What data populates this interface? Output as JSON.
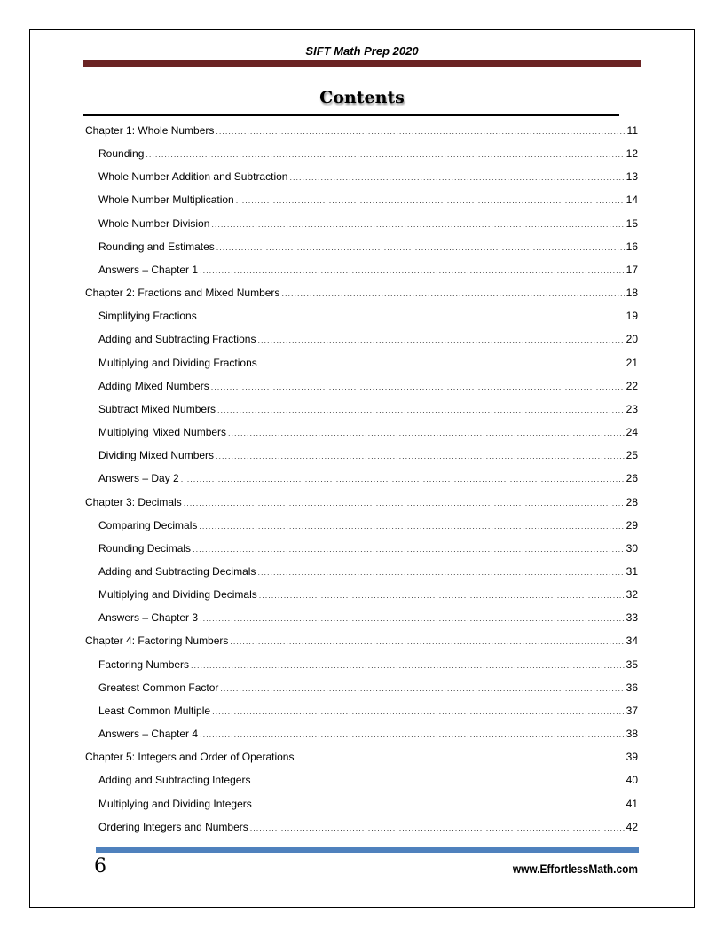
{
  "header": {
    "title": "SIFT Math Prep 2020",
    "bar_color": "#6b2424"
  },
  "heading": "Contents",
  "toc": [
    {
      "level": 1,
      "title": "Chapter 1:  Whole Numbers",
      "page": "11"
    },
    {
      "level": 2,
      "title": "Rounding",
      "page": "12"
    },
    {
      "level": 2,
      "title": "Whole Number Addition and Subtraction",
      "page": "13"
    },
    {
      "level": 2,
      "title": "Whole Number Multiplication",
      "page": "14"
    },
    {
      "level": 2,
      "title": "Whole Number Division",
      "page": "15"
    },
    {
      "level": 2,
      "title": "Rounding and Estimates",
      "page": "16"
    },
    {
      "level": 2,
      "title": "Answers – Chapter 1",
      "page": "17"
    },
    {
      "level": 1,
      "title": "Chapter 2:  Fractions and Mixed Numbers",
      "page": "18"
    },
    {
      "level": 2,
      "title": "Simplifying Fractions",
      "page": "19"
    },
    {
      "level": 2,
      "title": "Adding and Subtracting Fractions",
      "page": "20"
    },
    {
      "level": 2,
      "title": "Multiplying and Dividing Fractions",
      "page": "21"
    },
    {
      "level": 2,
      "title": "Adding Mixed Numbers",
      "page": "22"
    },
    {
      "level": 2,
      "title": "Subtract Mixed Numbers",
      "page": "23"
    },
    {
      "level": 2,
      "title": "Multiplying Mixed Numbers",
      "page": "24"
    },
    {
      "level": 2,
      "title": "Dividing Mixed Numbers",
      "page": "25"
    },
    {
      "level": 2,
      "title": "Answers – Day 2",
      "page": "26"
    },
    {
      "level": 1,
      "title": "Chapter 3:  Decimals",
      "page": "28"
    },
    {
      "level": 2,
      "title": "Comparing Decimals",
      "page": "29"
    },
    {
      "level": 2,
      "title": "Rounding Decimals",
      "page": "30"
    },
    {
      "level": 2,
      "title": "Adding and Subtracting Decimals",
      "page": "31"
    },
    {
      "level": 2,
      "title": "Multiplying and Dividing Decimals",
      "page": "32"
    },
    {
      "level": 2,
      "title": "Answers – Chapter 3",
      "page": "33"
    },
    {
      "level": 1,
      "title": "Chapter 4:  Factoring Numbers",
      "page": "34"
    },
    {
      "level": 2,
      "title": "Factoring Numbers",
      "page": "35"
    },
    {
      "level": 2,
      "title": "Greatest Common Factor",
      "page": "36"
    },
    {
      "level": 2,
      "title": "Least Common Multiple",
      "page": "37"
    },
    {
      "level": 2,
      "title": "Answers – Chapter 4",
      "page": "38"
    },
    {
      "level": 1,
      "title": "Chapter 5:  Integers and Order of Operations",
      "page": "39"
    },
    {
      "level": 2,
      "title": "Adding and Subtracting Integers",
      "page": "40"
    },
    {
      "level": 2,
      "title": "Multiplying and Dividing Integers",
      "page": "41"
    },
    {
      "level": 2,
      "title": "Ordering Integers and Numbers",
      "page": "42"
    }
  ],
  "footer": {
    "page_number": "6",
    "url": "www.EffortlessMath.com",
    "bar_color": "#4f81bd"
  }
}
